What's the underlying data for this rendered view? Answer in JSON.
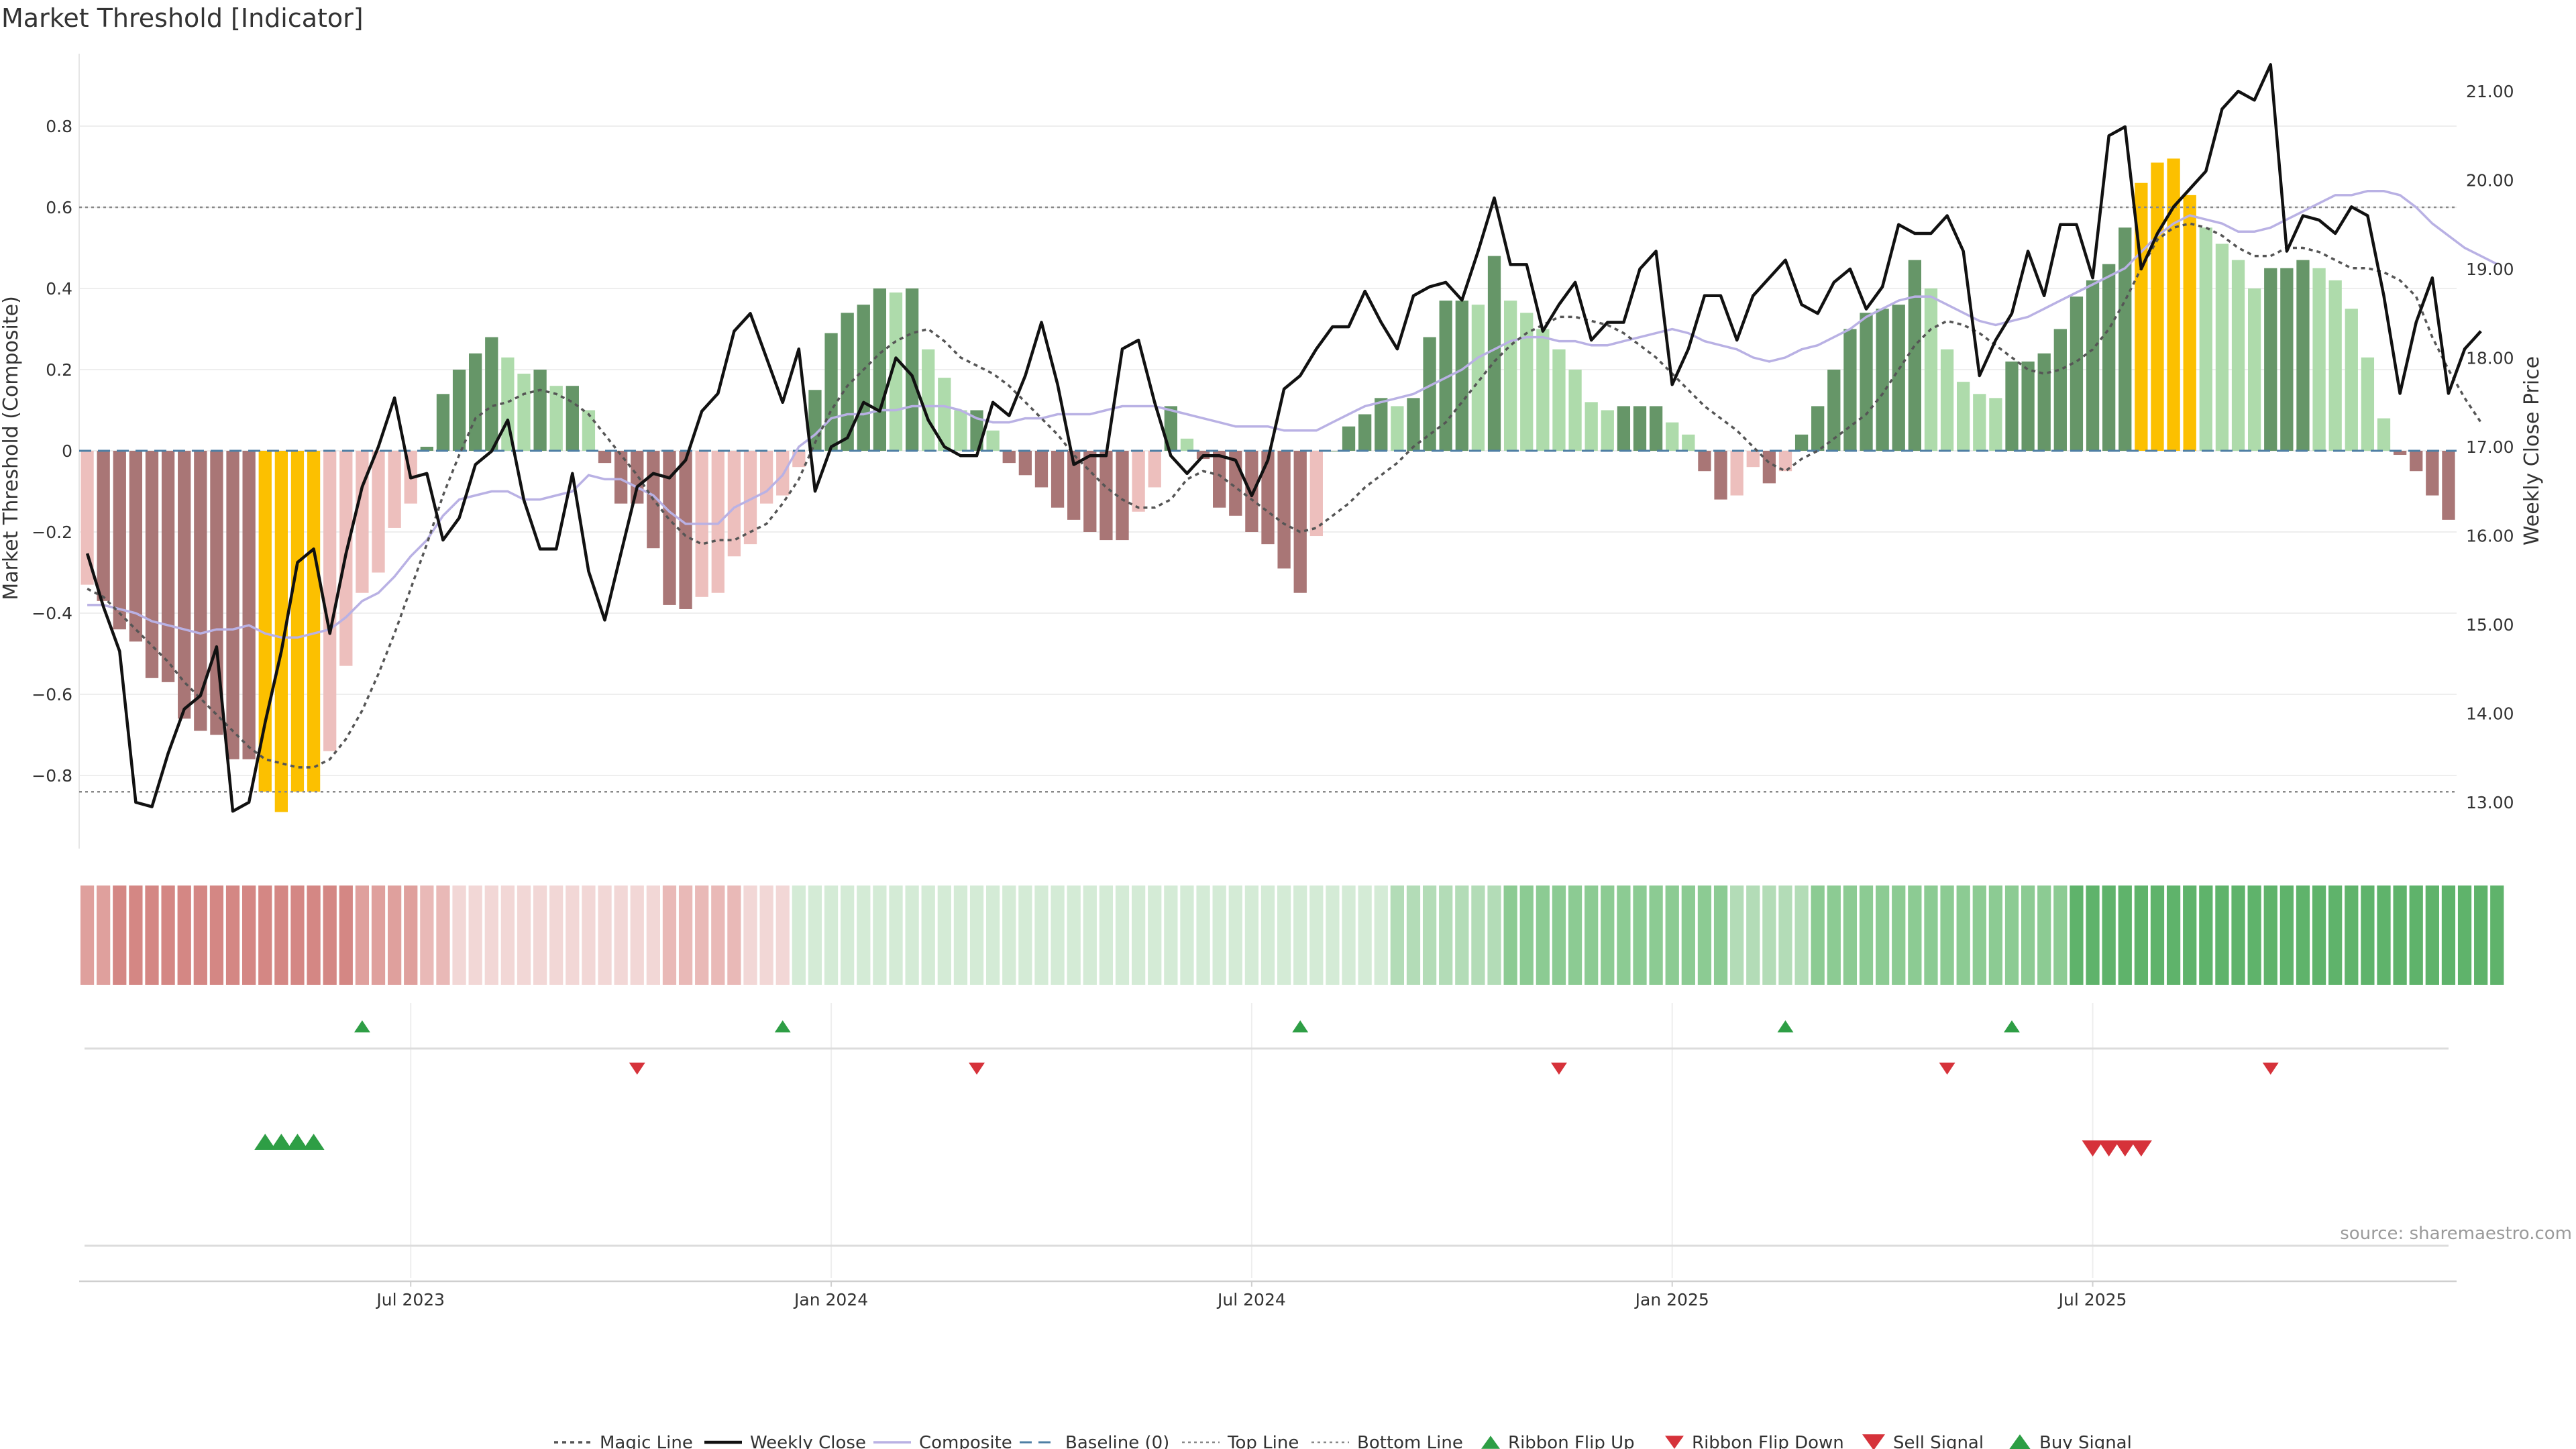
{
  "chart_data": {
    "type": "bar",
    "title": "Market Threshold [Indicator]",
    "ylabel_left": "Market Threshold (Composite)",
    "ylabel_right": "Weekly Close Price",
    "ylim_left": [
      -1.0,
      1.0
    ],
    "ylim_right": [
      12.5,
      21.5
    ],
    "yticks_left": [
      {
        "v": 0.8,
        "t": "0.8"
      },
      {
        "v": 0.6,
        "t": "0.6"
      },
      {
        "v": 0.4,
        "t": "0.4"
      },
      {
        "v": 0.2,
        "t": "0.2"
      },
      {
        "v": 0.0,
        "t": "0"
      },
      {
        "v": -0.2,
        "t": "−0.2"
      },
      {
        "v": -0.4,
        "t": "−0.4"
      },
      {
        "v": -0.6,
        "t": "−0.6"
      },
      {
        "v": -0.8,
        "t": "−0.8"
      }
    ],
    "yticks_right": [
      "21.00",
      "20.00",
      "19.00",
      "18.00",
      "17.00",
      "16.00",
      "15.00",
      "14.00",
      "13.00"
    ],
    "top_line": 0.6,
    "bottom_line": -0.84,
    "x_ticks": [
      {
        "i": 20,
        "label": "Jul 2023"
      },
      {
        "i": 46,
        "label": "Jan 2024"
      },
      {
        "i": 72,
        "label": "Jul 2024"
      },
      {
        "i": 98,
        "label": "Jan 2025"
      },
      {
        "i": 124,
        "label": "Jul 2025"
      }
    ],
    "composite_bars": [
      -0.33,
      -0.37,
      -0.44,
      -0.47,
      -0.56,
      -0.57,
      -0.66,
      -0.69,
      -0.7,
      -0.76,
      -0.76,
      -0.84,
      -0.89,
      -0.84,
      -0.84,
      -0.74,
      -0.53,
      -0.35,
      -0.3,
      -0.19,
      -0.13,
      0.01,
      0.14,
      0.2,
      0.24,
      0.28,
      0.23,
      0.19,
      0.2,
      0.16,
      0.16,
      0.1,
      -0.03,
      -0.13,
      -0.13,
      -0.24,
      -0.38,
      -0.39,
      -0.36,
      -0.35,
      -0.26,
      -0.23,
      -0.13,
      -0.11,
      -0.04,
      0.15,
      0.29,
      0.34,
      0.36,
      0.4,
      0.39,
      0.4,
      0.25,
      0.18,
      0.1,
      0.1,
      0.05,
      -0.03,
      -0.06,
      -0.09,
      -0.14,
      -0.17,
      -0.2,
      -0.22,
      -0.22,
      -0.15,
      -0.09,
      0.11,
      0.03,
      -0.02,
      -0.14,
      -0.16,
      -0.2,
      -0.23,
      -0.29,
      -0.35,
      -0.21,
      0.0,
      0.06,
      0.09,
      0.13,
      0.11,
      0.13,
      0.28,
      0.37,
      0.37,
      0.36,
      0.48,
      0.37,
      0.34,
      0.3,
      0.25,
      0.2,
      0.12,
      0.1,
      0.11,
      0.11,
      0.11,
      0.07,
      0.04,
      -0.05,
      -0.12,
      -0.11,
      -0.04,
      -0.08,
      -0.05,
      0.04,
      0.11,
      0.2,
      0.3,
      0.34,
      0.35,
      0.36,
      0.47,
      0.4,
      0.25,
      0.17,
      0.14,
      0.13,
      0.22,
      0.22,
      0.24,
      0.3,
      0.38,
      0.42,
      0.46,
      0.55,
      0.66,
      0.71,
      0.72,
      0.63,
      0.55,
      0.51,
      0.47,
      0.4,
      0.45,
      0.45,
      0.47,
      0.45,
      0.42,
      0.35,
      0.23,
      0.08,
      -0.01,
      -0.05,
      -0.11,
      -0.17
    ],
    "weekly_close": [
      15.8,
      15.2,
      14.7,
      13.0,
      12.95,
      13.55,
      14.05,
      14.2,
      14.75,
      12.9,
      13.0,
      13.9,
      14.7,
      15.7,
      15.85,
      14.9,
      15.8,
      16.55,
      17.0,
      17.55,
      16.65,
      16.7,
      15.95,
      16.2,
      16.8,
      16.95,
      17.3,
      16.4,
      15.85,
      15.85,
      16.7,
      15.6,
      15.05,
      15.8,
      16.55,
      16.7,
      16.65,
      16.85,
      17.4,
      17.6,
      18.3,
      18.5,
      18.0,
      17.5,
      18.1,
      16.5,
      17.0,
      17.1,
      17.5,
      17.4,
      18.0,
      17.8,
      17.3,
      17.0,
      16.9,
      16.9,
      17.5,
      17.35,
      17.8,
      18.4,
      17.7,
      16.8,
      16.9,
      16.9,
      18.1,
      18.2,
      17.5,
      16.9,
      16.7,
      16.9,
      16.9,
      16.85,
      16.45,
      16.85,
      17.65,
      17.8,
      18.1,
      18.35,
      18.35,
      18.75,
      18.4,
      18.1,
      18.7,
      18.8,
      18.85,
      18.65,
      19.2,
      19.8,
      19.05,
      19.05,
      18.3,
      18.6,
      18.85,
      18.2,
      18.4,
      18.4,
      19.0,
      19.2,
      17.7,
      18.1,
      18.7,
      18.7,
      18.2,
      18.7,
      18.9,
      19.1,
      18.6,
      18.5,
      18.85,
      19.0,
      18.55,
      18.8,
      19.5,
      19.4,
      19.4,
      19.6,
      19.2,
      17.8,
      18.2,
      18.5,
      19.2,
      18.7,
      19.5,
      19.5,
      18.9,
      20.5,
      20.6,
      19.0,
      19.4,
      19.7,
      19.9,
      20.1,
      20.8,
      21.0,
      20.9,
      21.3,
      19.2,
      19.6,
      19.55,
      19.4,
      19.7,
      19.6,
      18.7,
      17.6,
      18.4,
      18.9,
      17.6,
      18.1,
      18.3
    ],
    "magic_line": [
      -0.34,
      -0.36,
      -0.4,
      -0.44,
      -0.48,
      -0.52,
      -0.57,
      -0.61,
      -0.65,
      -0.69,
      -0.73,
      -0.76,
      -0.77,
      -0.78,
      -0.78,
      -0.76,
      -0.71,
      -0.64,
      -0.55,
      -0.45,
      -0.34,
      -0.23,
      -0.11,
      -0.01,
      0.08,
      0.11,
      0.12,
      0.14,
      0.15,
      0.14,
      0.12,
      0.09,
      0.04,
      -0.01,
      -0.06,
      -0.12,
      -0.17,
      -0.21,
      -0.23,
      -0.22,
      -0.22,
      -0.2,
      -0.18,
      -0.13,
      -0.07,
      0.02,
      0.1,
      0.16,
      0.2,
      0.24,
      0.27,
      0.29,
      0.3,
      0.27,
      0.23,
      0.21,
      0.19,
      0.16,
      0.12,
      0.08,
      0.04,
      -0.01,
      -0.05,
      -0.09,
      -0.12,
      -0.14,
      -0.14,
      -0.12,
      -0.07,
      -0.05,
      -0.06,
      -0.09,
      -0.12,
      -0.15,
      -0.18,
      -0.2,
      -0.19,
      -0.16,
      -0.13,
      -0.09,
      -0.06,
      -0.03,
      0.01,
      0.04,
      0.07,
      0.12,
      0.17,
      0.22,
      0.26,
      0.29,
      0.31,
      0.33,
      0.33,
      0.32,
      0.31,
      0.29,
      0.26,
      0.23,
      0.19,
      0.15,
      0.11,
      0.08,
      0.05,
      0.01,
      -0.03,
      -0.05,
      -0.02,
      0.0,
      0.03,
      0.06,
      0.09,
      0.14,
      0.2,
      0.26,
      0.3,
      0.32,
      0.31,
      0.29,
      0.26,
      0.23,
      0.2,
      0.19,
      0.2,
      0.22,
      0.25,
      0.3,
      0.37,
      0.45,
      0.52,
      0.55,
      0.56,
      0.55,
      0.53,
      0.5,
      0.48,
      0.48,
      0.5,
      0.5,
      0.49,
      0.47,
      0.45,
      0.45,
      0.44,
      0.42,
      0.38,
      0.28,
      0.2,
      0.13,
      0.07
    ],
    "composite_line": [
      -0.38,
      -0.38,
      -0.39,
      -0.4,
      -0.42,
      -0.43,
      -0.44,
      -0.45,
      -0.44,
      -0.44,
      -0.43,
      -0.45,
      -0.46,
      -0.46,
      -0.45,
      -0.44,
      -0.41,
      -0.37,
      -0.35,
      -0.31,
      -0.26,
      -0.22,
      -0.16,
      -0.12,
      -0.11,
      -0.1,
      -0.1,
      -0.12,
      -0.12,
      -0.11,
      -0.1,
      -0.06,
      -0.07,
      -0.07,
      -0.09,
      -0.11,
      -0.15,
      -0.18,
      -0.18,
      -0.18,
      -0.14,
      -0.12,
      -0.1,
      -0.06,
      0.01,
      0.04,
      0.08,
      0.09,
      0.09,
      0.1,
      0.1,
      0.11,
      0.11,
      0.11,
      0.1,
      0.08,
      0.07,
      0.07,
      0.08,
      0.08,
      0.09,
      0.09,
      0.09,
      0.1,
      0.11,
      0.11,
      0.11,
      0.1,
      0.09,
      0.08,
      0.07,
      0.06,
      0.06,
      0.06,
      0.05,
      0.05,
      0.05,
      0.07,
      0.09,
      0.11,
      0.12,
      0.13,
      0.14,
      0.16,
      0.18,
      0.2,
      0.23,
      0.25,
      0.27,
      0.28,
      0.28,
      0.27,
      0.27,
      0.26,
      0.26,
      0.27,
      0.28,
      0.29,
      0.3,
      0.29,
      0.27,
      0.26,
      0.25,
      0.23,
      0.22,
      0.23,
      0.25,
      0.26,
      0.28,
      0.3,
      0.33,
      0.35,
      0.37,
      0.38,
      0.38,
      0.36,
      0.34,
      0.32,
      0.31,
      0.32,
      0.33,
      0.35,
      0.37,
      0.39,
      0.41,
      0.43,
      0.45,
      0.49,
      0.53,
      0.56,
      0.58,
      0.57,
      0.56,
      0.54,
      0.54,
      0.55,
      0.57,
      0.59,
      0.61,
      0.63,
      0.63,
      0.64,
      0.64,
      0.63,
      0.6,
      0.56,
      0.53,
      0.5,
      0.48,
      0.46
    ],
    "ribbon_flip_up": [
      17,
      43,
      75,
      105,
      119
    ],
    "ribbon_flip_down": [
      34,
      55,
      91,
      115,
      135
    ],
    "buy_signal": [
      11,
      12,
      13,
      14
    ],
    "sell_signal": [
      124,
      125,
      126,
      127
    ],
    "legend": [
      "Magic Line",
      "Weekly Close",
      "Composite",
      "Baseline (0)",
      "Top Line",
      "Bottom Line",
      "Ribbon Flip Up",
      "Ribbon Flip Down",
      "Sell Signal",
      "Buy Signal"
    ],
    "source": "source: sharemaestro.com"
  },
  "colors": {
    "strong_red": "#a97676",
    "light_red": "#edbfbd",
    "yellow": "#fcc000",
    "strong_green": "#669668",
    "light_green": "#aedbab",
    "weekly_close": "#111111",
    "composite": "#b9b1e4",
    "magic": "#555555",
    "baseline": "#4f7fa4",
    "up_marker": "#2e9e45",
    "down_marker": "#d6323a"
  }
}
